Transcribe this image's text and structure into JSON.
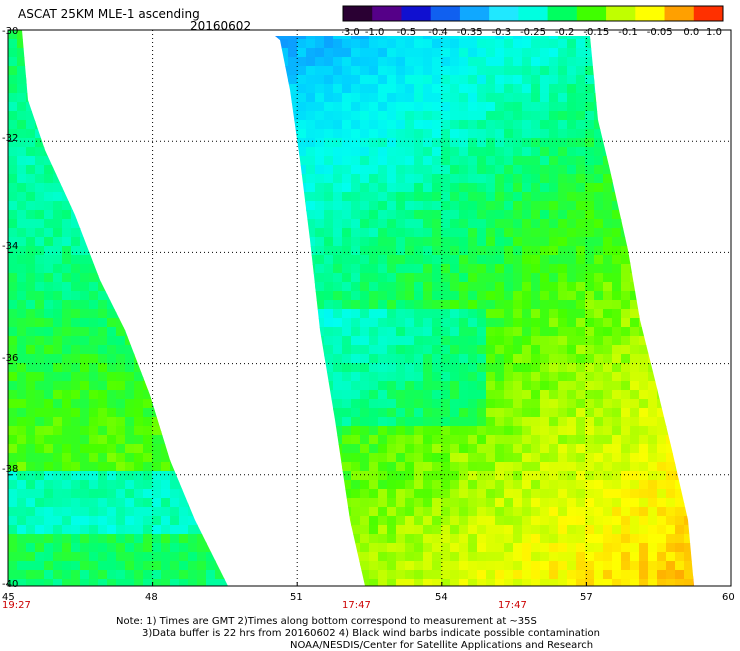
{
  "header": {
    "title": "ASCAT 25KM MLE-1 ascending",
    "date": "20160602"
  },
  "colorbar": {
    "labels": [
      "-3.0",
      "-1.0",
      "-0.5",
      "-0.4",
      "-0.35",
      "-0.3",
      "-0.25",
      "-0.2",
      "-0.15",
      "-0.1",
      "-0.05",
      "0.0",
      "1.0"
    ],
    "colors": [
      "#2a0033",
      "#550088",
      "#1010d0",
      "#1060f0",
      "#10a8ff",
      "#20e8ff",
      "#00ffe0",
      "#00ff60",
      "#40ff00",
      "#c0ff00",
      "#ffff00",
      "#ffa000",
      "#ff3000"
    ]
  },
  "map": {
    "lon_range": [
      45,
      60
    ],
    "lat_range": [
      -40,
      -30
    ],
    "x_ticks": [
      "45",
      "48",
      "51",
      "54",
      "57",
      "60"
    ],
    "y_ticks": [
      "-30",
      "-32",
      "-34",
      "-36",
      "-38",
      "-40"
    ],
    "pass_times": [
      "19:27",
      "17:47",
      "17:47"
    ]
  },
  "notes": {
    "line1": "Note: 1) Times are GMT 2)Times along bottom correspond to measurement at ~35S",
    "line2": "3)Data buffer is 22 hrs from 20160602 4) Black wind barbs indicate possible contamination",
    "line3": "NOAA/NESDIS/Center for Satellite Applications and Research"
  }
}
